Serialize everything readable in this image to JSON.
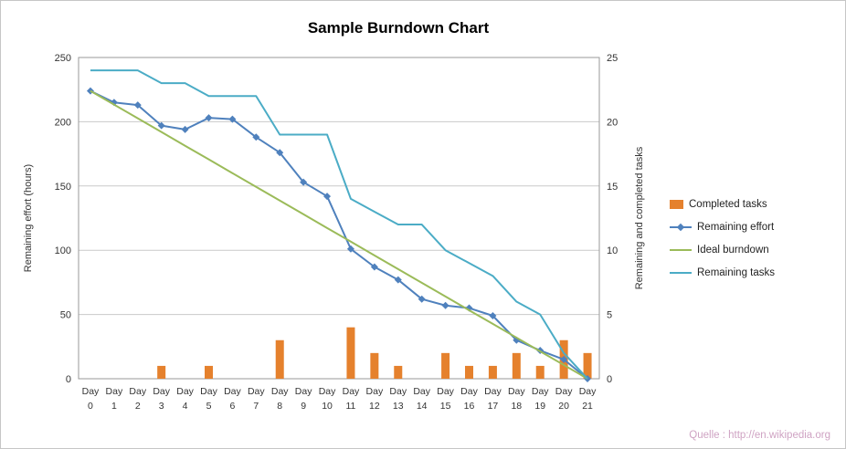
{
  "watermark": "Quelle : http://en.wikipedia.org",
  "chart_data": {
    "type": "combo-bar-line",
    "title": "Sample Burndown Chart",
    "grid": true,
    "legend_position": "right",
    "x_axis": {
      "prefix": "Day",
      "categories": [
        "0",
        "1",
        "2",
        "3",
        "4",
        "5",
        "6",
        "7",
        "8",
        "9",
        "10",
        "11",
        "12",
        "13",
        "14",
        "15",
        "16",
        "17",
        "18",
        "19",
        "20",
        "21"
      ]
    },
    "left_axis": {
      "title": "Remaining effort (hours)",
      "min": 0,
      "max": 250,
      "ticks": [
        0,
        50,
        100,
        150,
        200,
        250
      ]
    },
    "right_axis": {
      "title": "Remaining and completed tasks",
      "min": 0,
      "max": 25,
      "ticks": [
        0,
        5,
        10,
        15,
        20,
        25
      ]
    },
    "series": [
      {
        "name": "Completed tasks",
        "type": "bar",
        "axis": "right",
        "color": "#E5812D",
        "values": [
          0,
          0,
          0,
          1,
          0,
          1,
          0,
          0,
          3,
          0,
          0,
          4,
          2,
          1,
          0,
          2,
          1,
          1,
          2,
          1,
          3,
          2
        ]
      },
      {
        "name": "Remaining effort",
        "type": "line",
        "marker": "diamond",
        "axis": "left",
        "color": "#4F81BD",
        "values": [
          224,
          215,
          213,
          197,
          194,
          203,
          202,
          188,
          176,
          153,
          142,
          101,
          87,
          77,
          62,
          57,
          55,
          49,
          30,
          22,
          15,
          0
        ]
      },
      {
        "name": "Ideal burndown",
        "type": "line",
        "axis": "left",
        "color": "#9BBB59",
        "values": [
          224,
          213.3,
          202.7,
          192,
          181.3,
          170.7,
          160,
          149.3,
          138.7,
          128,
          117.3,
          106.7,
          96,
          85.3,
          74.7,
          64,
          53.3,
          42.7,
          32,
          21.3,
          10.7,
          0
        ]
      },
      {
        "name": "Remaining tasks",
        "type": "line",
        "axis": "right",
        "color": "#4BACC6",
        "values": [
          24,
          24,
          24,
          23,
          23,
          22,
          22,
          22,
          19,
          19,
          19,
          14,
          13,
          12,
          12,
          10,
          9,
          8,
          6,
          5,
          2,
          0
        ]
      }
    ]
  }
}
